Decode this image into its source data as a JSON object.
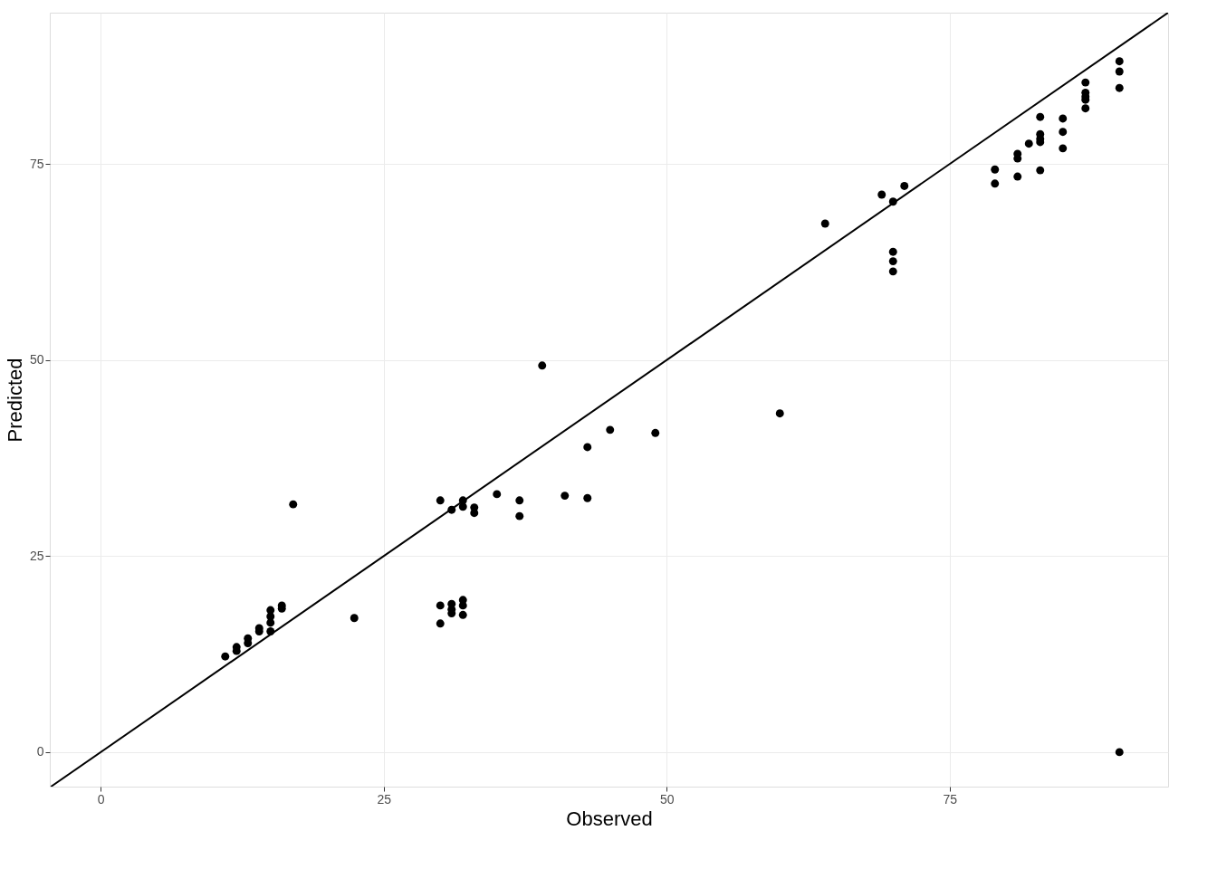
{
  "chart_data": {
    "type": "scatter",
    "xlabel": "Observed",
    "ylabel": "Predicted",
    "xlim": [
      -4.5,
      94.3
    ],
    "ylim": [
      -4.4,
      94.3
    ],
    "xticks": [
      0,
      25,
      50,
      75
    ],
    "yticks": [
      0,
      25,
      50,
      75
    ],
    "grid": true,
    "marker": "circle",
    "series": [
      {
        "color": "#000000",
        "x": [
          11,
          12,
          12,
          13,
          13,
          14,
          14,
          15,
          15,
          15,
          15,
          16,
          16,
          17,
          22.4,
          30,
          30,
          31,
          31,
          31,
          32,
          32,
          32,
          30,
          31,
          32,
          32,
          33,
          33,
          35,
          37,
          37,
          39,
          41,
          43,
          43,
          45,
          49,
          60,
          64,
          69,
          70,
          71,
          70,
          70,
          70,
          79,
          79,
          81,
          81,
          81,
          82,
          83,
          83,
          83,
          83,
          83,
          85,
          85,
          85,
          87,
          87,
          87,
          87,
          87,
          90,
          90,
          90,
          90
        ],
        "values": [
          12.2,
          13.4,
          12.9,
          14.5,
          13.9,
          15.8,
          15.4,
          18.1,
          17.3,
          16.5,
          15.4,
          18.7,
          18.3,
          31.6,
          17.1,
          18.7,
          16.4,
          18.9,
          18.2,
          17.7,
          19.4,
          18.7,
          17.5,
          32.1,
          30.9,
          32.1,
          31.3,
          31.2,
          30.5,
          32.9,
          32.1,
          30.1,
          49.3,
          32.7,
          38.9,
          32.4,
          41.1,
          40.7,
          43.2,
          67.4,
          71.1,
          70.2,
          72.2,
          63.8,
          62.6,
          61.3,
          74.3,
          72.5,
          76.3,
          75.7,
          73.4,
          77.6,
          81.0,
          78.8,
          78.2,
          77.8,
          74.2,
          80.8,
          79.1,
          77.0,
          85.4,
          84.1,
          83.6,
          83.2,
          82.1,
          88.1,
          86.8,
          84.7,
          0
        ]
      },
      {
        "type": "line",
        "color": "#000000",
        "line_style": "solid",
        "marker": "none",
        "x": [
          -4.4,
          94.3
        ],
        "values": [
          -4.4,
          94.3
        ]
      }
    ]
  }
}
